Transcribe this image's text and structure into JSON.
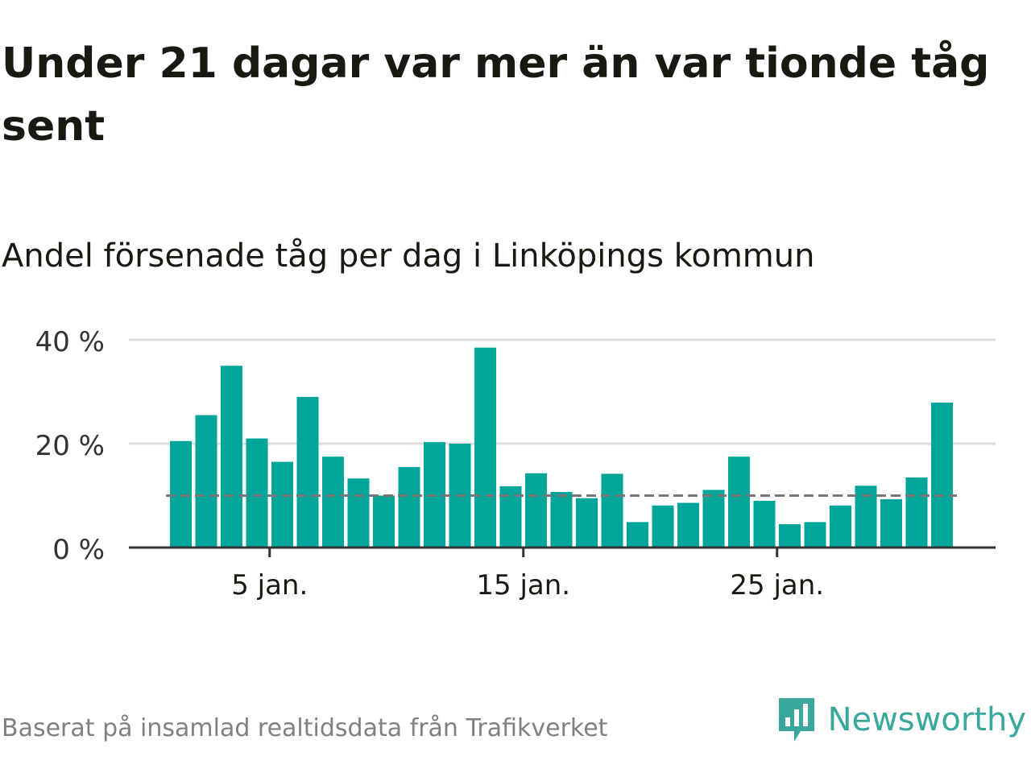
{
  "title": "Under 21 dagar var mer än var tionde tåg sent",
  "subtitle": "Andel försenade tåg per dag i Linköpings kommun",
  "footer": {
    "source": "Baserat på insamlad realtidsdata från Trafikverket",
    "brand": "Newsworthy"
  },
  "colors": {
    "bar": "#00a59a",
    "grid": "#dddddd",
    "axis": "#333333",
    "reference_line": "#777777",
    "brand": "#3aa79c",
    "text": "#181a12",
    "muted_text": "#808080"
  },
  "chart_data": {
    "type": "bar",
    "title": "Andel försenade tåg per dag i Linköpings kommun",
    "xlabel": "",
    "ylabel": "",
    "x": [
      1,
      2,
      3,
      4,
      5,
      6,
      7,
      8,
      9,
      10,
      11,
      12,
      13,
      14,
      15,
      16,
      17,
      18,
      19,
      20,
      21,
      22,
      23,
      24,
      25,
      26,
      27,
      28,
      29,
      30,
      31
    ],
    "values": [
      20.5,
      25.5,
      35,
      21,
      16.5,
      29,
      17.5,
      13.3,
      10,
      15.5,
      20.3,
      20,
      38.5,
      11.8,
      14.3,
      10.7,
      9.5,
      14.2,
      4.9,
      8.1,
      8.6,
      11.1,
      17.5,
      9,
      4.5,
      4.9,
      8.1,
      11.9,
      9.3,
      13.5,
      27.9
    ],
    "x_ticks": [
      5,
      15,
      25
    ],
    "x_tick_labels": [
      "5 jan.",
      "15 jan.",
      "25 jan."
    ],
    "y_ticks": [
      0,
      20,
      40
    ],
    "y_tick_labels": [
      "0 %",
      "20 %",
      "40 %"
    ],
    "ylim": [
      0,
      40
    ],
    "reference_line": 10,
    "grid": true,
    "legend": "none"
  }
}
